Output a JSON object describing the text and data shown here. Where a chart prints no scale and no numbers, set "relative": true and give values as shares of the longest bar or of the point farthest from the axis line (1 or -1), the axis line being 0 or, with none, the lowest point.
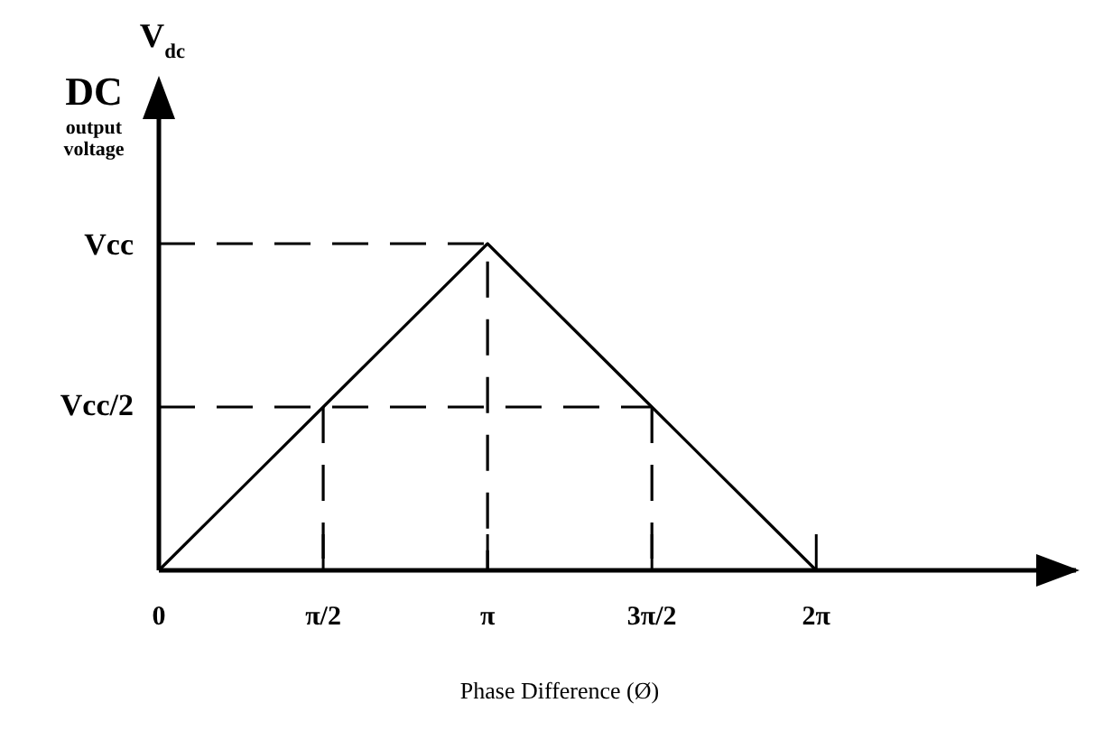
{
  "chart_data": {
    "type": "line",
    "relative": true,
    "xlabel": "Phase Difference (Ø)",
    "ylabel": "DC output voltage",
    "annotations": [
      "V$_{dc}$",
      "Vcc",
      "Vcc/2"
    ],
    "xlim": [
      0,
      8.8
    ],
    "xticks": [
      0,
      {
        "value": 1.5708,
        "label": "π/2"
      },
      {
        "value": 3.1416,
        "label": "π"
      },
      {
        "value": 4.7124,
        "label": "3π/2"
      },
      {
        "value": 6.2832,
        "label": "2π"
      }
    ],
    "series": [
      {
        "color": "#000000",
        "line_style": "solid",
        "x": [
          0,
          1.5708,
          3.1416,
          4.7124,
          6.2832
        ],
        "values": [
          0,
          0.5,
          1,
          0.5,
          0
        ]
      },
      {
        "color": "#000000",
        "line_style": "dashed",
        "x": [
          0,
          3.1416,
          3.1416
        ],
        "values": [
          1,
          1,
          0
        ]
      },
      {
        "color": "#000000",
        "line_style": "dashed",
        "x": [
          0,
          4.7124
        ],
        "values": [
          0.5,
          0.5
        ]
      },
      {
        "color": "#000000",
        "line_style": "dashed",
        "x": [
          1.5708,
          1.5708
        ],
        "values": [
          0.5,
          0
        ]
      },
      {
        "color": "#000000",
        "line_style": "dashed",
        "x": [
          4.7124,
          4.7124
        ],
        "values": [
          0.5,
          0
        ]
      }
    ]
  }
}
